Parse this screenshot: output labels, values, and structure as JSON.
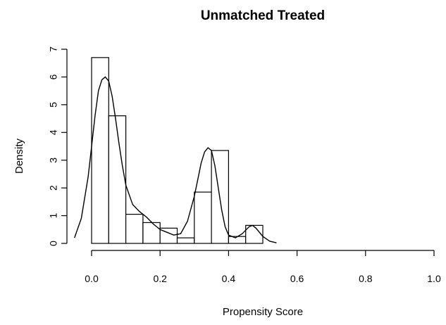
{
  "chart_data": {
    "type": "bar",
    "title": "Unmatched Treated",
    "xlabel": "Propensity Score",
    "ylabel": "Density",
    "xlim": [
      0,
      1
    ],
    "ylim": [
      0,
      7
    ],
    "xticks": [
      0.0,
      0.2,
      0.4,
      0.6,
      0.8,
      1.0
    ],
    "xtick_labels": [
      "0.0",
      "0.2",
      "0.4",
      "0.6",
      "0.8",
      "1.0"
    ],
    "yticks": [
      0,
      1,
      2,
      3,
      4,
      5,
      6,
      7
    ],
    "ytick_labels": [
      "0",
      "1",
      "2",
      "3",
      "4",
      "5",
      "6",
      "7"
    ],
    "grid": false,
    "histogram": {
      "bin_edges": [
        0.0,
        0.05,
        0.1,
        0.15,
        0.2,
        0.25,
        0.3,
        0.35,
        0.4,
        0.45,
        0.5
      ],
      "densities": [
        6.7,
        4.6,
        1.05,
        0.75,
        0.55,
        0.2,
        1.85,
        3.35,
        0.25,
        0.65
      ]
    },
    "density_curve": {
      "x": [
        -0.05,
        -0.03,
        -0.01,
        0.0,
        0.01,
        0.02,
        0.03,
        0.04,
        0.05,
        0.06,
        0.07,
        0.08,
        0.09,
        0.1,
        0.12,
        0.14,
        0.16,
        0.18,
        0.2,
        0.22,
        0.24,
        0.26,
        0.28,
        0.3,
        0.31,
        0.32,
        0.33,
        0.34,
        0.35,
        0.36,
        0.37,
        0.38,
        0.39,
        0.4,
        0.42,
        0.44,
        0.46,
        0.47,
        0.48,
        0.5,
        0.52,
        0.54
      ],
      "y": [
        0.2,
        0.9,
        2.4,
        3.5,
        4.6,
        5.5,
        5.9,
        6.0,
        5.85,
        5.3,
        4.5,
        3.6,
        2.8,
        2.1,
        1.4,
        1.15,
        0.95,
        0.7,
        0.5,
        0.4,
        0.3,
        0.35,
        0.8,
        1.7,
        2.3,
        2.9,
        3.3,
        3.45,
        3.35,
        2.8,
        2.0,
        1.2,
        0.6,
        0.3,
        0.2,
        0.35,
        0.6,
        0.65,
        0.55,
        0.25,
        0.08,
        0.02
      ]
    }
  }
}
